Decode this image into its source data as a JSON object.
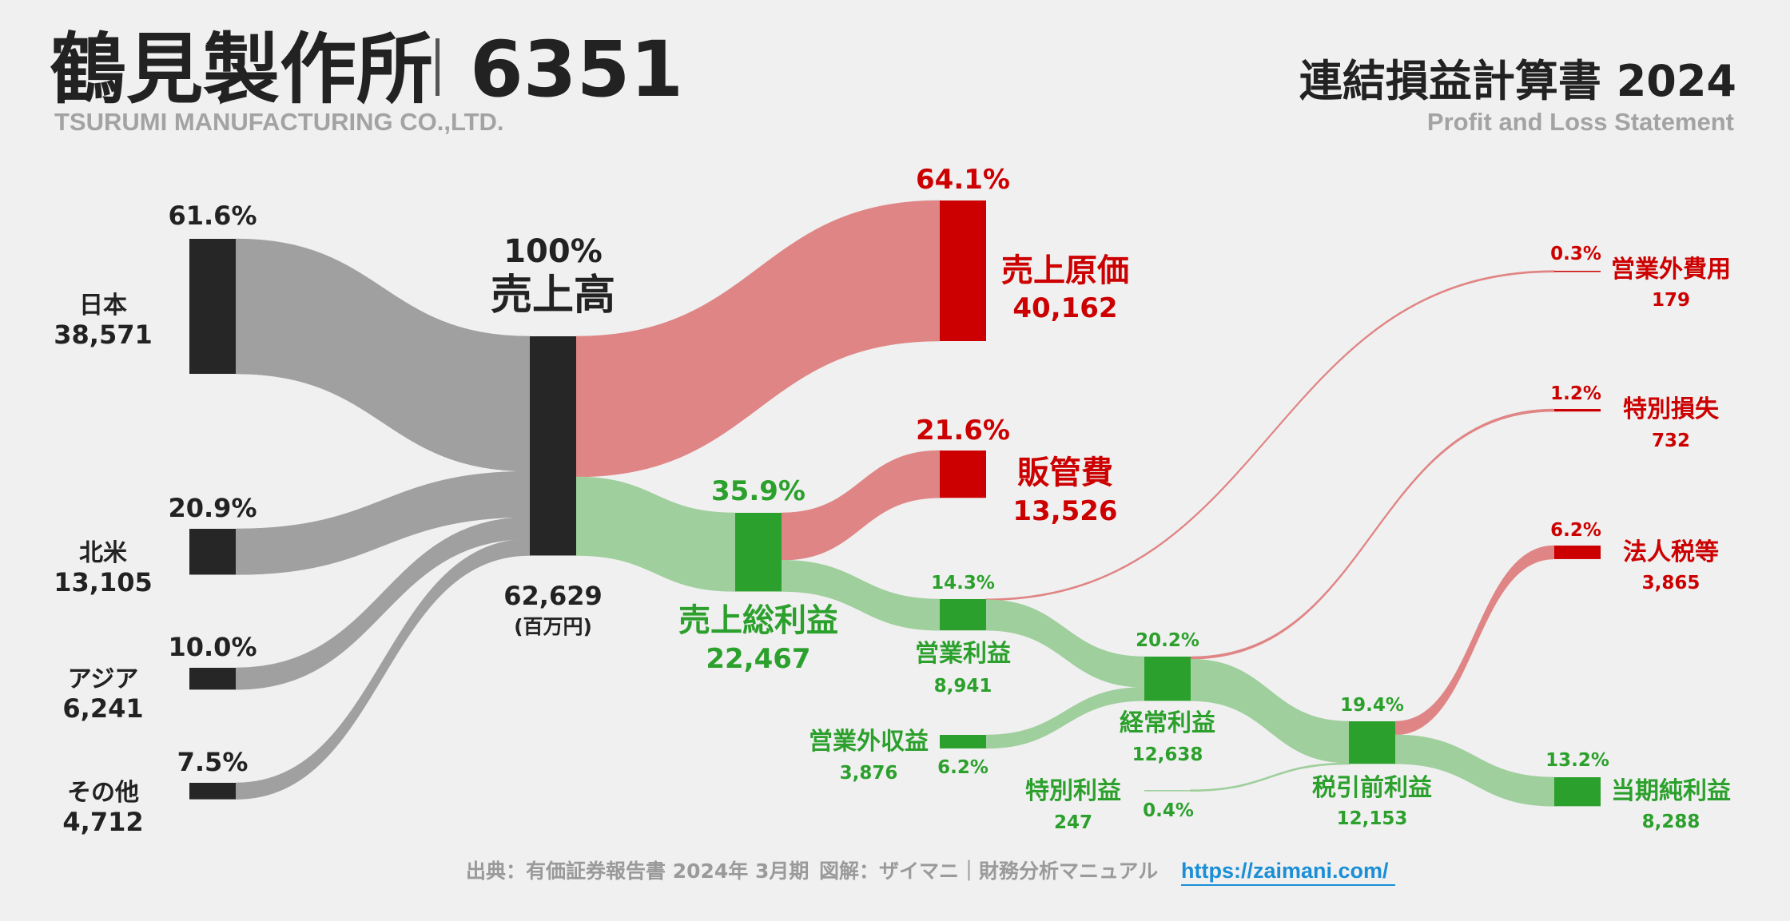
{
  "header": {
    "company": "鶴見製作所",
    "code": "6351",
    "company_en": "TSURUMI MANUFACTURING CO.,LTD.",
    "title": "連結損益計算書 2024",
    "subtitle": "Profit and Loss Statement"
  },
  "footer": {
    "source": "出典：有価証券報告書 2024年 3月期",
    "credit": "図解：ザイマニ｜財務分析マニュアル",
    "link": "https://zaimani.com/"
  },
  "colors": {
    "background": "#f0f0f0",
    "node_dark": "#262626",
    "flow_gray": "#a0a0a0",
    "cost_red": "#cc0000",
    "cost_flow": "#e08585",
    "profit_green": "#2ca02c",
    "profit_flow": "#9fcf9c",
    "text_dark": "#222222",
    "link_blue": "#1a8fd6"
  },
  "chart_data": {
    "type": "sankey",
    "unit": "(百万円)",
    "nodes": [
      {
        "id": "japan",
        "label": "日本",
        "value": "38,571",
        "pct": "61.6%",
        "amount": 38571
      },
      {
        "id": "na",
        "label": "北米",
        "value": "13,105",
        "pct": "20.9%",
        "amount": 13105
      },
      {
        "id": "asia",
        "label": "アジア",
        "value": "6,241",
        "pct": "10.0%",
        "amount": 6241
      },
      {
        "id": "other",
        "label": "その他",
        "value": "4,712",
        "pct": "7.5%",
        "amount": 4712
      },
      {
        "id": "revenue",
        "label": "売上高",
        "value": "62,629",
        "pct": "100%",
        "amount": 62629
      },
      {
        "id": "cogs",
        "label": "売上原価",
        "value": "40,162",
        "pct": "64.1%",
        "amount": 40162
      },
      {
        "id": "gross",
        "label": "売上総利益",
        "value": "22,467",
        "pct": "35.9%",
        "amount": 22467
      },
      {
        "id": "sga",
        "label": "販管費",
        "value": "13,526",
        "pct": "21.6%",
        "amount": 13526
      },
      {
        "id": "op",
        "label": "営業利益",
        "value": "8,941",
        "pct": "14.3%",
        "amount": 8941
      },
      {
        "id": "nonop_inc",
        "label": "営業外収益",
        "value": "3,876",
        "pct": "6.2%",
        "amount": 3876
      },
      {
        "id": "nonop_exp",
        "label": "営業外費用",
        "value": "179",
        "pct": "0.3%",
        "amount": 179
      },
      {
        "id": "ord",
        "label": "経常利益",
        "value": "12,638",
        "pct": "20.2%",
        "amount": 12638
      },
      {
        "id": "ext_gain",
        "label": "特別利益",
        "value": "247",
        "pct": "0.4%",
        "amount": 247
      },
      {
        "id": "ext_loss",
        "label": "特別損失",
        "value": "732",
        "pct": "1.2%",
        "amount": 732
      },
      {
        "id": "pretax",
        "label": "税引前利益",
        "value": "12,153",
        "pct": "19.4%",
        "amount": 12153
      },
      {
        "id": "tax",
        "label": "法人税等",
        "value": "3,865",
        "pct": "6.2%",
        "amount": 3865
      },
      {
        "id": "net",
        "label": "当期純利益",
        "value": "8,288",
        "pct": "13.2%",
        "amount": 8288
      }
    ],
    "links": [
      {
        "from": "japan",
        "to": "revenue",
        "value": 38571
      },
      {
        "from": "na",
        "to": "revenue",
        "value": 13105
      },
      {
        "from": "asia",
        "to": "revenue",
        "value": 6241
      },
      {
        "from": "other",
        "to": "revenue",
        "value": 4712
      },
      {
        "from": "revenue",
        "to": "cogs",
        "value": 40162
      },
      {
        "from": "revenue",
        "to": "gross",
        "value": 22467
      },
      {
        "from": "gross",
        "to": "sga",
        "value": 13526
      },
      {
        "from": "gross",
        "to": "op",
        "value": 8941
      },
      {
        "from": "op",
        "to": "nonop_exp",
        "value": 179
      },
      {
        "from": "op",
        "to": "ord",
        "value": 8762
      },
      {
        "from": "nonop_inc",
        "to": "ord",
        "value": 3876
      },
      {
        "from": "ord",
        "to": "ext_loss",
        "value": 732
      },
      {
        "from": "ord",
        "to": "pretax",
        "value": 11906
      },
      {
        "from": "ext_gain",
        "to": "pretax",
        "value": 247
      },
      {
        "from": "pretax",
        "to": "tax",
        "value": 3865
      },
      {
        "from": "pretax",
        "to": "net",
        "value": 8288
      }
    ]
  }
}
